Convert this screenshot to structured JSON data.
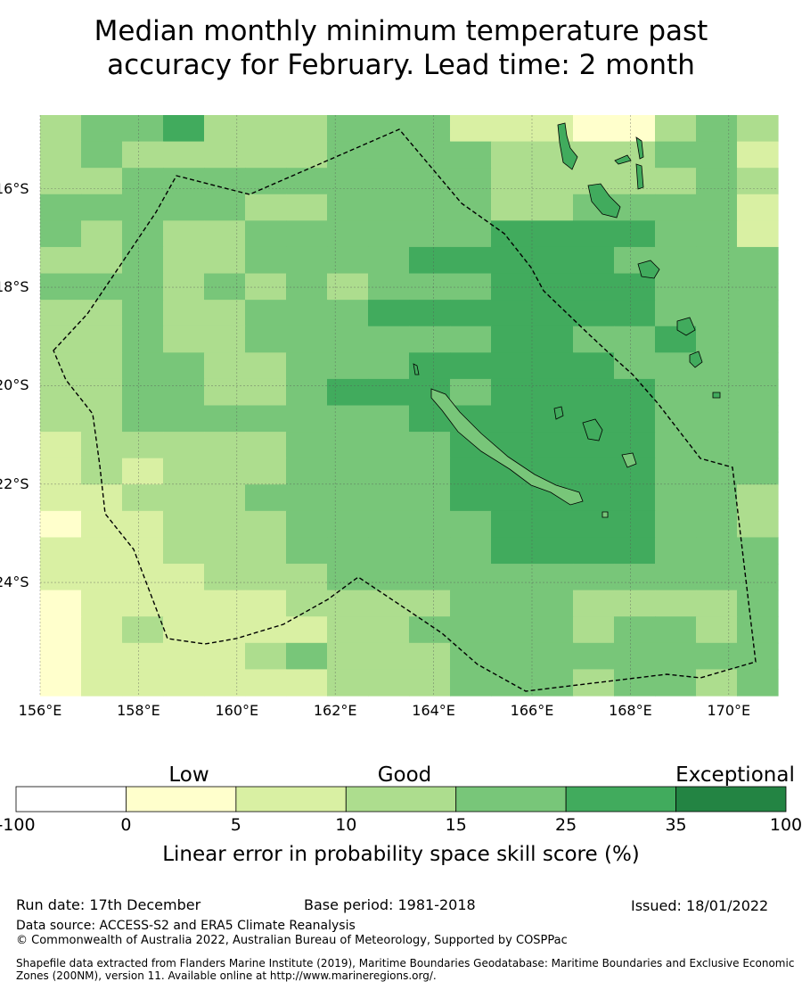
{
  "title": {
    "line1": "Median monthly minimum temperature past",
    "line2": "accuracy for February. Lead time: 2 month"
  },
  "map": {
    "x_ticks": [
      "156°E",
      "158°E",
      "160°E",
      "162°E",
      "164°E",
      "166°E",
      "168°E",
      "170°E"
    ],
    "y_ticks": [
      "16°S",
      "18°S",
      "20°S",
      "22°S",
      "24°S"
    ],
    "x_tick_values": [
      156,
      158,
      160,
      162,
      164,
      166,
      168,
      170
    ],
    "y_tick_values": [
      -16,
      -18,
      -20,
      -22,
      -24
    ],
    "lon_range": [
      156,
      171
    ],
    "lat_range": [
      -26.3,
      -14.5
    ],
    "grid_lines": true,
    "boundary_style": "dashed",
    "colormap": [
      "#ffffff",
      "#ffffcc",
      "#d9f0a3",
      "#addd8e",
      "#78c679",
      "#41ab5d",
      "#238443"
    ]
  },
  "colorbar": {
    "categories": [
      "Low",
      "Good",
      "Exceptional"
    ],
    "ticks": [
      "-100",
      "0",
      "5",
      "10",
      "15",
      "25",
      "35",
      "100"
    ],
    "label": "Linear error in probability space skill score (%)",
    "colors": [
      "#ffffff",
      "#ffffcc",
      "#d9f0a3",
      "#addd8e",
      "#78c679",
      "#41ab5d",
      "#238443"
    ]
  },
  "footer": {
    "run_date": "Run date: 17th December",
    "base_period": "Base period: 1981-2018",
    "issued": "Issued: 18/01/2022",
    "data_source": "Data source: ACCESS-S2 and ERA5 Climate Reanalysis",
    "copyright": "© Commonwealth of Australia 2022, Australian Bureau of Meteorology, Supported by COSPPac",
    "shapefile_note": "Shapefile data extracted from Flanders Marine Institute (2019), Maritime Boundaries Geodatabase: Maritime Boundaries and Exclusive Economic Zones (200NM), version 11. Available online at http://www.marineregions.org/."
  }
}
